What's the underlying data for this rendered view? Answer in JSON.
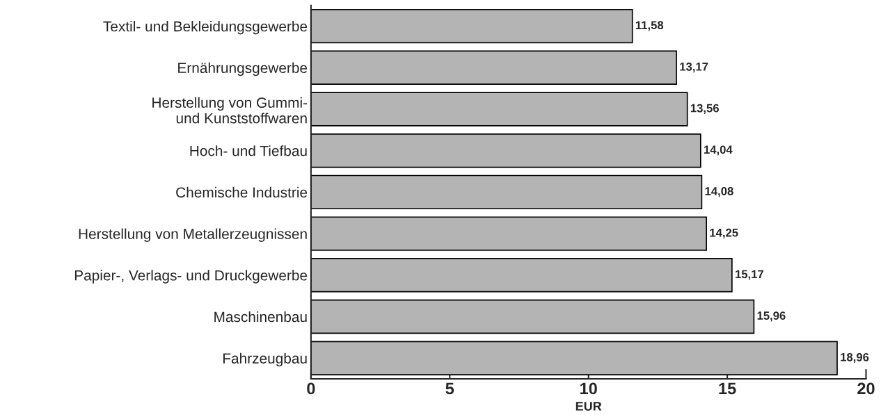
{
  "chart_data": {
    "type": "bar",
    "orientation": "horizontal",
    "xlabel": "EUR",
    "categories": [
      "Textil- und Bekleidungsgewerbe",
      "Ernährungsgewerbe",
      "Herstellung von Gummi-\nund Kunststoffwaren",
      "Hoch- und Tiefbau",
      "Chemische Industrie",
      "Herstellung von Metallerzeugnissen",
      "Papier-, Verlags- und Druckgewerbe",
      "Maschinenbau",
      "Fahrzeugbau"
    ],
    "values": [
      11.58,
      13.17,
      13.56,
      14.04,
      14.08,
      14.25,
      15.17,
      15.96,
      18.96
    ],
    "value_labels": [
      "11,58",
      "13,17",
      "13,56",
      "14,04",
      "14,08",
      "14,25",
      "15,17",
      "15,96",
      "18,96"
    ],
    "color": "#b4b4b4",
    "xlim": [
      0,
      20
    ],
    "xticks": [
      0,
      5,
      10,
      15,
      20
    ],
    "grid": false,
    "legend": false
  }
}
